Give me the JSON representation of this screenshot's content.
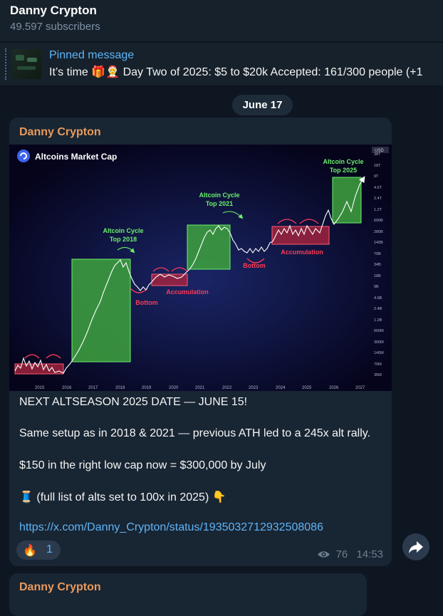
{
  "channel": {
    "title": "Danny Crypton",
    "subscribers": "49.597 subscribers"
  },
  "pinned": {
    "title": "Pinned message",
    "text": "It’s time 🎁🤶  Day Two of 2025: $5 to $20k  Accepted: 161/300 people (+1"
  },
  "date_separator": "June 17",
  "post": {
    "author": "Danny Crypton",
    "lines": [
      "NEXT ALTSEASON 2025 DATE — JUNE 15!",
      "Same setup as in 2018 & 2021 — previous ATH led to a 245x alt rally.",
      "$150 in the right low cap now = $300,000 by July",
      "🧵 (full list of alts set to 100x in 2025) 👇"
    ],
    "link": "https://x.com/Danny_Crypton/status/1935032712932508086",
    "reaction": {
      "emoji": "🔥",
      "count": "1"
    },
    "views": "76",
    "time": "14:53"
  },
  "chart": {
    "title": "Altcoins Market Cap",
    "currency": "USD",
    "x_ticks": [
      "2015",
      "2016",
      "2017",
      "2018",
      "2019",
      "2020",
      "2021",
      "2022",
      "2023",
      "2024",
      "2025",
      "2026",
      "2027"
    ],
    "y_ticks": [
      "38T",
      "18T",
      "9T",
      "4.6T",
      "2.4T",
      "1.2T",
      "600B",
      "280B",
      "140B",
      "70B",
      "34B",
      "18B",
      "9B",
      "4.6B",
      "2.4B",
      "1.2B",
      "600M",
      "300M",
      "140M",
      "70M",
      "35M"
    ],
    "labels": {
      "cycle_2018_line1": "Altcoin Cycle",
      "cycle_2018_line2": "Top 2018",
      "cycle_2021_line1": "Altcoin Cycle",
      "cycle_2021_line2": "Top 2021",
      "cycle_2025_line1": "Altcoin Cycle",
      "cycle_2025_line2": "Top 2025",
      "accumulation_1": "Accumulation",
      "accumulation_2": "Accumulation",
      "bottom_1": "Bottom",
      "bottom_2": "Bottom"
    },
    "colors": {
      "cycle": "#3ea33e",
      "accumulation": "#a7243e",
      "text_green": "#6cf06c",
      "text_red": "#ff3a56"
    }
  },
  "post2": {
    "author": "Danny Crypton"
  }
}
